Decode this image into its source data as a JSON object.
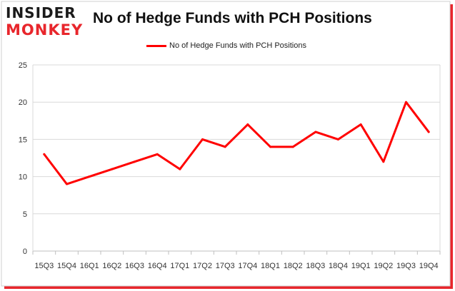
{
  "brand": {
    "line1": "INSIDER",
    "line2": "MONKEY"
  },
  "chart_data": {
    "type": "line",
    "title": "No of Hedge Funds with PCH Positions",
    "xlabel": "",
    "ylabel": "",
    "ylim": [
      0,
      25
    ],
    "yticks": [
      0,
      5,
      10,
      15,
      20,
      25
    ],
    "grid": true,
    "legend_position": "top-center",
    "categories": [
      "15Q3",
      "15Q4",
      "16Q1",
      "16Q2",
      "16Q3",
      "16Q4",
      "17Q1",
      "17Q2",
      "17Q3",
      "17Q4",
      "18Q1",
      "18Q2",
      "18Q3",
      "18Q4",
      "19Q1",
      "19Q2",
      "19Q3",
      "19Q4"
    ],
    "series": [
      {
        "name": "No of Hedge Funds with PCH Positions",
        "color": "#ff0000",
        "values": [
          13,
          9,
          10,
          11,
          12,
          13,
          11,
          15,
          14,
          17,
          14,
          14,
          16,
          15,
          17,
          12,
          20,
          16
        ]
      }
    ]
  },
  "colors": {
    "frame_shadow": "#e8262c",
    "grid": "#d9d9d9",
    "axis": "#bfbfbf"
  }
}
